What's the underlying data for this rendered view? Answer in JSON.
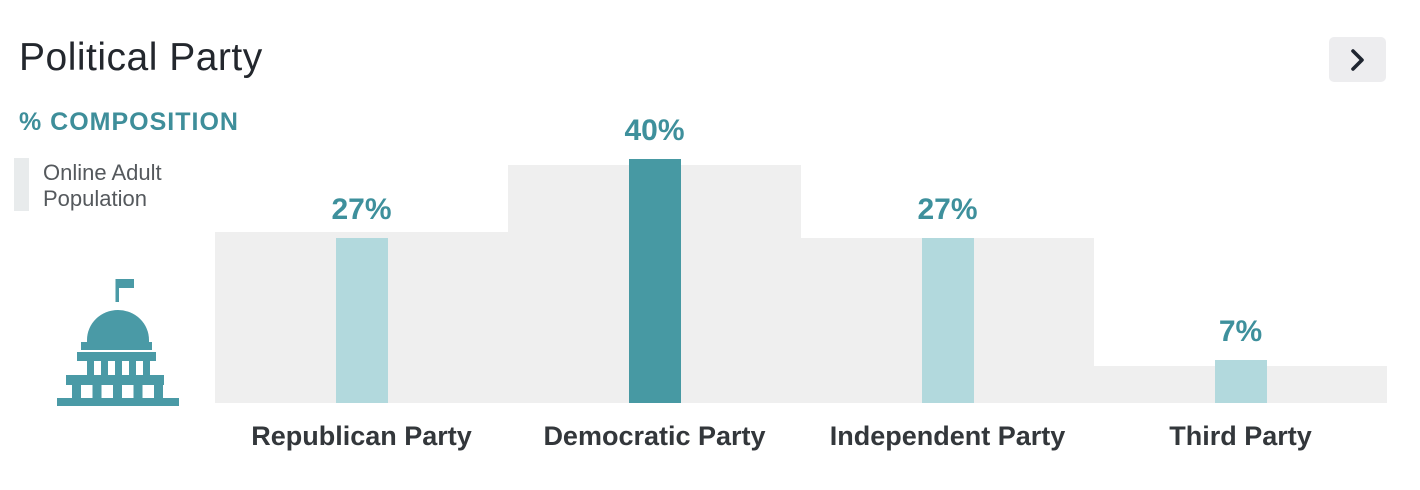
{
  "header": {
    "title": "Political Party",
    "subtitle": "% COMPOSITION"
  },
  "nav": {
    "next_button": {
      "icon": "chevron-right-icon",
      "color": "#1f2530",
      "background": "#ededef"
    }
  },
  "legend": {
    "swatch_color": "#e8ebec",
    "label": "Online Adult Population"
  },
  "icons": {
    "capitol": "capitol-building-icon",
    "capitol_color": "#4a9aa6"
  },
  "colors": {
    "accent_teal_dark": "#4799a3",
    "accent_teal_light": "#b2d9dd",
    "teal_text": "#3e909c",
    "population_gray": "#efefef"
  },
  "chart_data": {
    "type": "bar",
    "title": "Political Party",
    "ylabel": "% COMPOSITION",
    "categories": [
      "Republican Party",
      "Democratic Party",
      "Independent Party",
      "Third Party"
    ],
    "series": [
      {
        "name": "% Composition",
        "values": [
          27,
          40,
          27,
          7
        ],
        "labels": [
          "27%",
          "40%",
          "27%",
          "7%"
        ],
        "colors": [
          "#b2d9dd",
          "#4799a3",
          "#b2d9dd",
          "#b2d9dd"
        ]
      },
      {
        "name": "Online Adult Population",
        "values": [
          28,
          39,
          27,
          6
        ],
        "estimated_from_pixels": true,
        "color": "#efefef"
      }
    ],
    "ylim": [
      0,
      45
    ],
    "grid": false,
    "axis_lines": false,
    "legend_position": "left",
    "value_label_color": "#3e909c"
  }
}
